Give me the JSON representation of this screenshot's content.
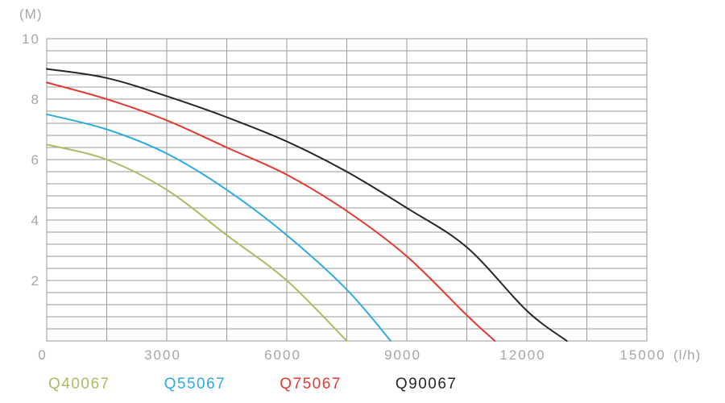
{
  "axes": {
    "y_unit_label": "(M)",
    "x_unit_label": "(l/h)",
    "label_color": "#a6a6a6",
    "grid_color": "#9b9b9b",
    "x_ticks": [
      {
        "label": "0",
        "value": 0
      },
      {
        "label": "3000",
        "value": 3000
      },
      {
        "label": "6000",
        "value": 6000
      },
      {
        "label": "9000",
        "value": 9000
      },
      {
        "label": "12000",
        "value": 12000
      },
      {
        "label": "15000",
        "value": 15000
      }
    ],
    "y_ticks": [
      {
        "label": "10",
        "value": 10
      },
      {
        "label": "8",
        "value": 8
      },
      {
        "label": "6",
        "value": 6
      },
      {
        "label": "4",
        "value": 4
      },
      {
        "label": "2",
        "value": 2
      }
    ]
  },
  "chart_data": {
    "type": "line",
    "xlabel": "(l/h)",
    "ylabel": "(M)",
    "xlim": [
      0,
      15000
    ],
    "ylim": [
      0,
      10
    ],
    "x_minor_gridline_step": 1500,
    "y_minor_gridline_step": 0.4,
    "grid": true,
    "legend_position": "bottom",
    "series": [
      {
        "name": "Q40067",
        "color": "#a9bd62",
        "points": [
          [
            0,
            6.5
          ],
          [
            1500,
            6.0
          ],
          [
            3000,
            5.0
          ],
          [
            4500,
            3.5
          ],
          [
            6000,
            2.0
          ],
          [
            7500,
            0
          ]
        ]
      },
      {
        "name": "Q55067",
        "color": "#2fabe2",
        "points": [
          [
            0,
            7.5
          ],
          [
            1500,
            7.0
          ],
          [
            3000,
            6.2
          ],
          [
            4500,
            5.0
          ],
          [
            6000,
            3.5
          ],
          [
            7500,
            1.7
          ],
          [
            8600,
            0
          ]
        ]
      },
      {
        "name": "Q75067",
        "color": "#e23a33",
        "points": [
          [
            0,
            8.55
          ],
          [
            1500,
            8.0
          ],
          [
            3000,
            7.3
          ],
          [
            4500,
            6.4
          ],
          [
            6000,
            5.5
          ],
          [
            7500,
            4.3
          ],
          [
            9000,
            2.8
          ],
          [
            10500,
            0.85
          ],
          [
            11200,
            0
          ]
        ]
      },
      {
        "name": "Q90067",
        "color": "#292526",
        "points": [
          [
            0,
            9.0
          ],
          [
            1500,
            8.7
          ],
          [
            3000,
            8.1
          ],
          [
            4500,
            7.4
          ],
          [
            6000,
            6.6
          ],
          [
            7500,
            5.6
          ],
          [
            9000,
            4.4
          ],
          [
            10500,
            3.1
          ],
          [
            12000,
            1.0
          ],
          [
            13000,
            0
          ]
        ]
      }
    ]
  }
}
